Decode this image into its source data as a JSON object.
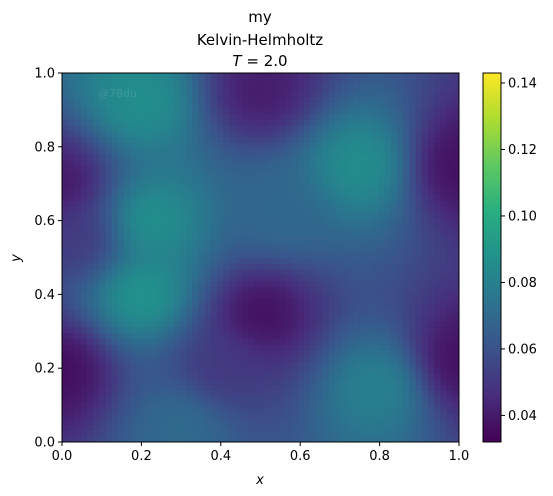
{
  "chart_data": {
    "type": "heatmap",
    "title_lines": [
      "my",
      "Kelvin-Helmholtz",
      "T = 2.0"
    ],
    "title_math": {
      "symbol": "T",
      "rest": " = 2.0"
    },
    "xlabel": "x",
    "ylabel": "y",
    "xlim": [
      0.0,
      1.0
    ],
    "ylim": [
      0.0,
      1.0
    ],
    "x_ticks": [
      "0.0",
      "0.2",
      "0.4",
      "0.6",
      "0.8",
      "1.0"
    ],
    "y_ticks": [
      "0.0",
      "0.2",
      "0.4",
      "0.6",
      "0.8",
      "1.0"
    ],
    "colormap": "viridis",
    "colorbar": {
      "vmin": 0.032,
      "vmax": 0.143,
      "ticks": [
        "0.04",
        "0.06",
        "0.08",
        "0.10",
        "0.12",
        "0.14"
      ],
      "tick_values": [
        0.04,
        0.06,
        0.08,
        0.1,
        0.12,
        0.14
      ]
    },
    "grid": false,
    "watermark": "@78du",
    "field_samples": [
      {
        "x": 0.0,
        "y": 0.2,
        "value": 0.035
      },
      {
        "x": 0.0,
        "y": 0.7,
        "value": 0.038
      },
      {
        "x": 0.5,
        "y": 0.35,
        "value": 0.035
      },
      {
        "x": 0.5,
        "y": 0.95,
        "value": 0.04
      },
      {
        "x": 1.0,
        "y": 0.75,
        "value": 0.036
      },
      {
        "x": 1.0,
        "y": 0.22,
        "value": 0.036
      },
      {
        "x": 0.2,
        "y": 0.4,
        "value": 0.092
      },
      {
        "x": 0.22,
        "y": 0.6,
        "value": 0.09
      },
      {
        "x": 0.2,
        "y": 0.92,
        "value": 0.088
      },
      {
        "x": 0.75,
        "y": 0.75,
        "value": 0.088
      },
      {
        "x": 0.8,
        "y": 0.15,
        "value": 0.082
      },
      {
        "x": 0.3,
        "y": 0.05,
        "value": 0.072
      },
      {
        "x": 0.55,
        "y": 0.62,
        "value": 0.07
      },
      {
        "x": 0.05,
        "y": 0.55,
        "value": 0.05
      },
      {
        "x": 0.4,
        "y": 0.2,
        "value": 0.05
      }
    ]
  }
}
